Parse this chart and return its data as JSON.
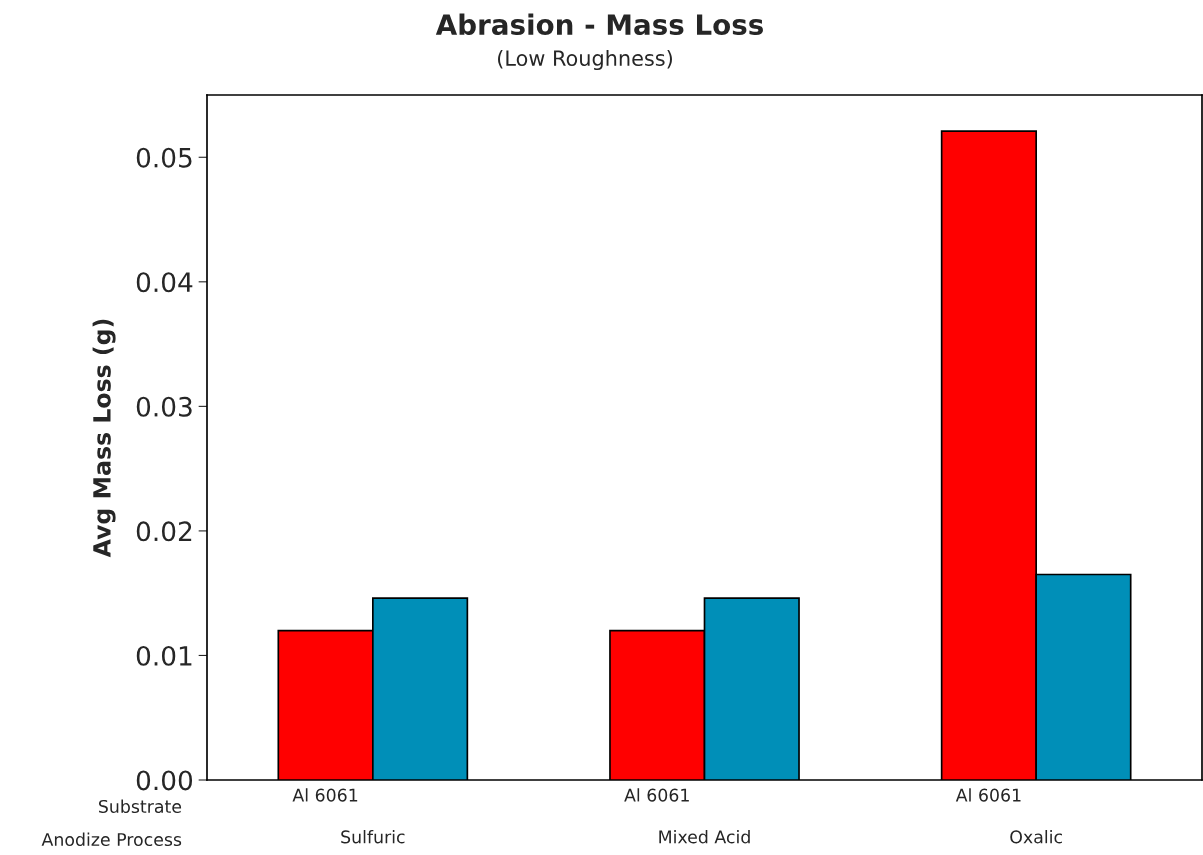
{
  "chart_data": {
    "type": "bar",
    "title": "Abrasion - Mass Loss",
    "subtitle": "(Low Roughness)",
    "ylabel": "Avg Mass Loss (g)",
    "categories": [
      "Sulfuric",
      "Mixed Acid",
      "Oxalic"
    ],
    "series": [
      {
        "name": "Al 6061",
        "color": "#ff0000",
        "values": [
          0.012,
          0.012,
          0.0521
        ]
      },
      {
        "color": "#008fb8",
        "values": [
          0.0146,
          0.0146,
          0.0165
        ]
      }
    ],
    "annotations": [
      "Substrate",
      "Anodize Process"
    ],
    "ylim": [
      0,
      0.055
    ],
    "yticks": [
      {
        "value": 0,
        "label": "0.00"
      },
      0.01,
      0.02,
      0.03,
      0.04,
      0.05
    ],
    "grid": false,
    "legend": false
  }
}
